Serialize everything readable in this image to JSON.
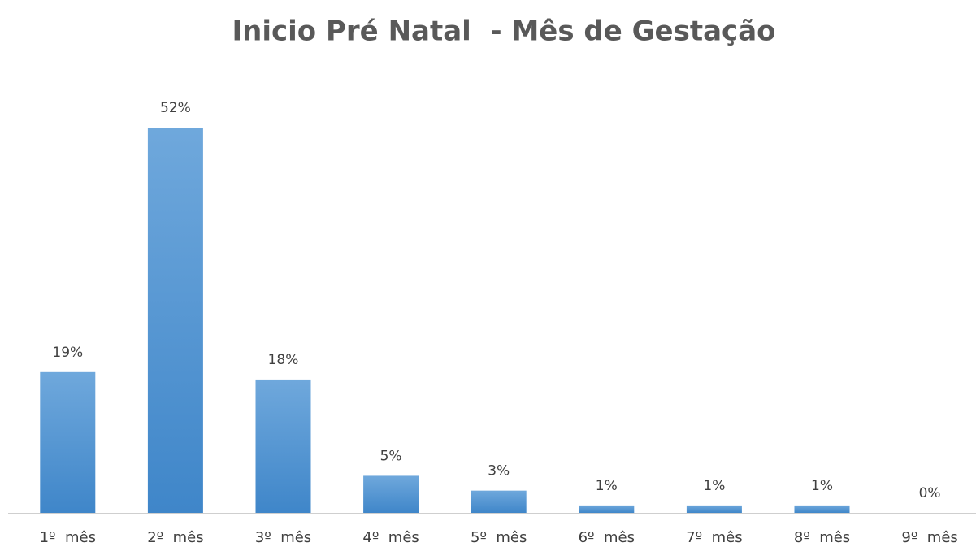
{
  "chart_data": {
    "type": "bar",
    "title": "Inicio Pré Natal  - Mês de Gestação",
    "categories": [
      "1º  mês",
      "2º  mês",
      "3º  mês",
      "4º  mês",
      "5º  mês",
      "6º  mês",
      "7º  mês",
      "8º  mês",
      "9º  mês"
    ],
    "values": [
      19,
      52,
      18,
      5,
      3,
      1,
      1,
      1,
      0
    ],
    "value_labels": [
      "19%",
      "52%",
      "18%",
      "5%",
      "3%",
      "1%",
      "1%",
      "1%",
      "0%"
    ],
    "color": "#5b9bd5"
  }
}
